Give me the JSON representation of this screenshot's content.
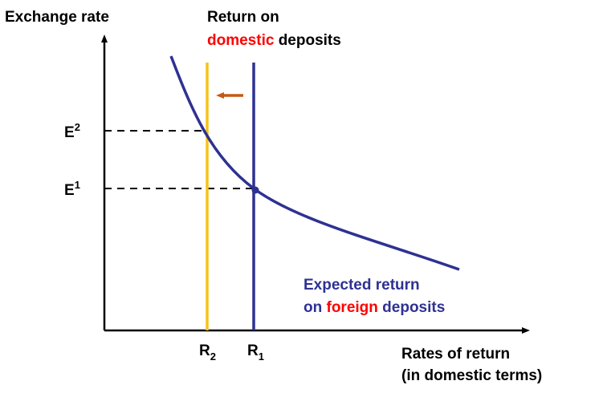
{
  "y_axis_label": "Exchange rate",
  "x_axis_label": {
    "line1": "Rates of return",
    "line2": "(in domestic terms)"
  },
  "domestic_label": {
    "line1": "Return on",
    "highlight": "domestic",
    "rest": " deposits"
  },
  "foreign_label": {
    "line1": "Expected return",
    "prefix": "on ",
    "highlight": "foreign",
    "rest": " deposits"
  },
  "e2_label": {
    "base": "E",
    "sup": "2"
  },
  "e1_label": {
    "base": "E",
    "sup": "1"
  },
  "r2_label": {
    "base": "R",
    "sub": "2"
  },
  "r1_label": {
    "base": "R",
    "sub": "1"
  },
  "colors": {
    "axis": "#000000",
    "foreign_curve": "#2e3192",
    "new_domestic_line": "#f5c21b",
    "old_domestic_line": "#2e3192",
    "highlight_text": "#ff0000",
    "shift_arrow": "#c55a11"
  },
  "shift_direction": "left"
}
